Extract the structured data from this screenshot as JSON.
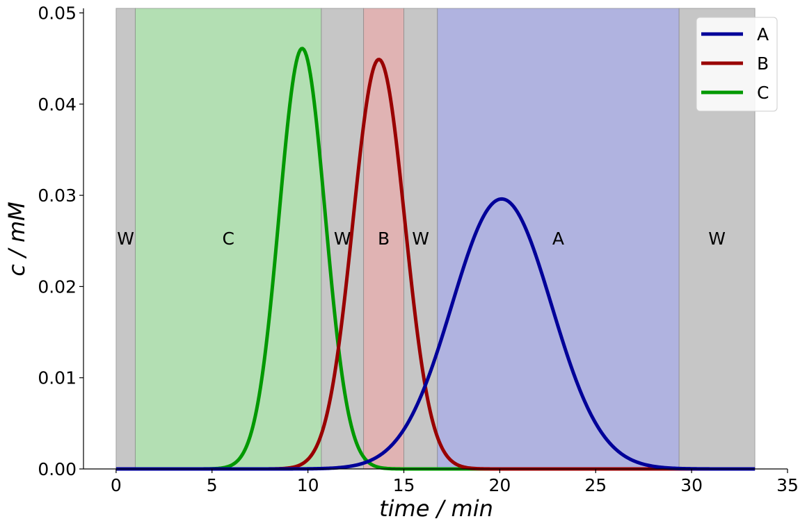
{
  "chart_data": {
    "type": "line",
    "xlabel": "time / min",
    "ylabel": "c / mM",
    "xlim": [
      -1.7,
      35
    ],
    "ylim": [
      0,
      0.0505
    ],
    "x_ticks": [
      0,
      5,
      10,
      15,
      20,
      25,
      30,
      35
    ],
    "y_ticks": [
      0.0,
      0.01,
      0.02,
      0.03,
      0.04,
      0.05
    ],
    "x_tick_labels": [
      "0",
      "5",
      "10",
      "15",
      "20",
      "25",
      "30",
      "35"
    ],
    "y_tick_labels": [
      "0.00",
      "0.01",
      "0.02",
      "0.03",
      "0.04",
      "0.05"
    ],
    "grid": false,
    "legend_position": "top-right",
    "series": [
      {
        "name": "A",
        "color": "#000099",
        "peak_time": 20.1,
        "peak_value": 0.0296,
        "sigma": 2.6
      },
      {
        "name": "B",
        "color": "#990000",
        "peak_time": 13.7,
        "peak_value": 0.0449,
        "sigma": 1.35
      },
      {
        "name": "C",
        "color": "#009900",
        "peak_time": 9.7,
        "peak_value": 0.0461,
        "sigma": 1.2
      }
    ],
    "time_range": [
      0,
      33.3
    ],
    "regions": [
      {
        "label": "W",
        "start": 0,
        "end": 1.0,
        "color": "#c6c6c6"
      },
      {
        "label": "C",
        "start": 1.0,
        "end": 10.7,
        "color": "#b3dfb3"
      },
      {
        "label": "W",
        "start": 10.7,
        "end": 12.9,
        "color": "#c6c6c6"
      },
      {
        "label": "B",
        "start": 12.9,
        "end": 15.0,
        "color": "#e0b3b3"
      },
      {
        "label": "W",
        "start": 15.0,
        "end": 16.75,
        "color": "#c6c6c6"
      },
      {
        "label": "A",
        "start": 16.75,
        "end": 29.35,
        "color": "#b0b3e0"
      },
      {
        "label": "W",
        "start": 29.35,
        "end": 33.3,
        "color": "#c6c6c6"
      }
    ],
    "region_label_y": 0.0253
  }
}
